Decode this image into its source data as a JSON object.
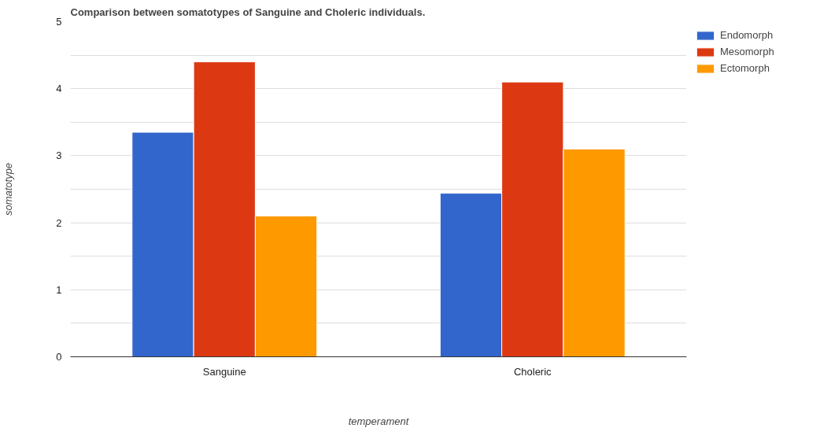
{
  "chart_data": {
    "type": "bar",
    "title": "Comparison between somatotypes of Sanguine and Choleric individuals.",
    "xlabel": "temperament",
    "ylabel": "somatotype",
    "categories": [
      "Sanguine",
      "Choleric"
    ],
    "series": [
      {
        "name": "Endomorph",
        "color": "#3366cc",
        "values": [
          3.35,
          2.44
        ]
      },
      {
        "name": "Mesomorph",
        "color": "#dc3912",
        "values": [
          4.4,
          4.1
        ]
      },
      {
        "name": "Ectomorph",
        "color": "#ff9900",
        "values": [
          2.1,
          3.1
        ]
      }
    ],
    "ylim": [
      0,
      5
    ],
    "yticks": [
      0,
      {
        "value": 0.5,
        "label": null
      },
      1,
      {
        "value": 1.5,
        "label": null
      },
      2,
      {
        "value": 2.5,
        "label": null
      },
      3,
      {
        "value": 3.5,
        "label": null
      },
      4,
      {
        "value": 4.5,
        "label": null
      },
      5
    ],
    "grid": "y",
    "legend": "top right"
  }
}
